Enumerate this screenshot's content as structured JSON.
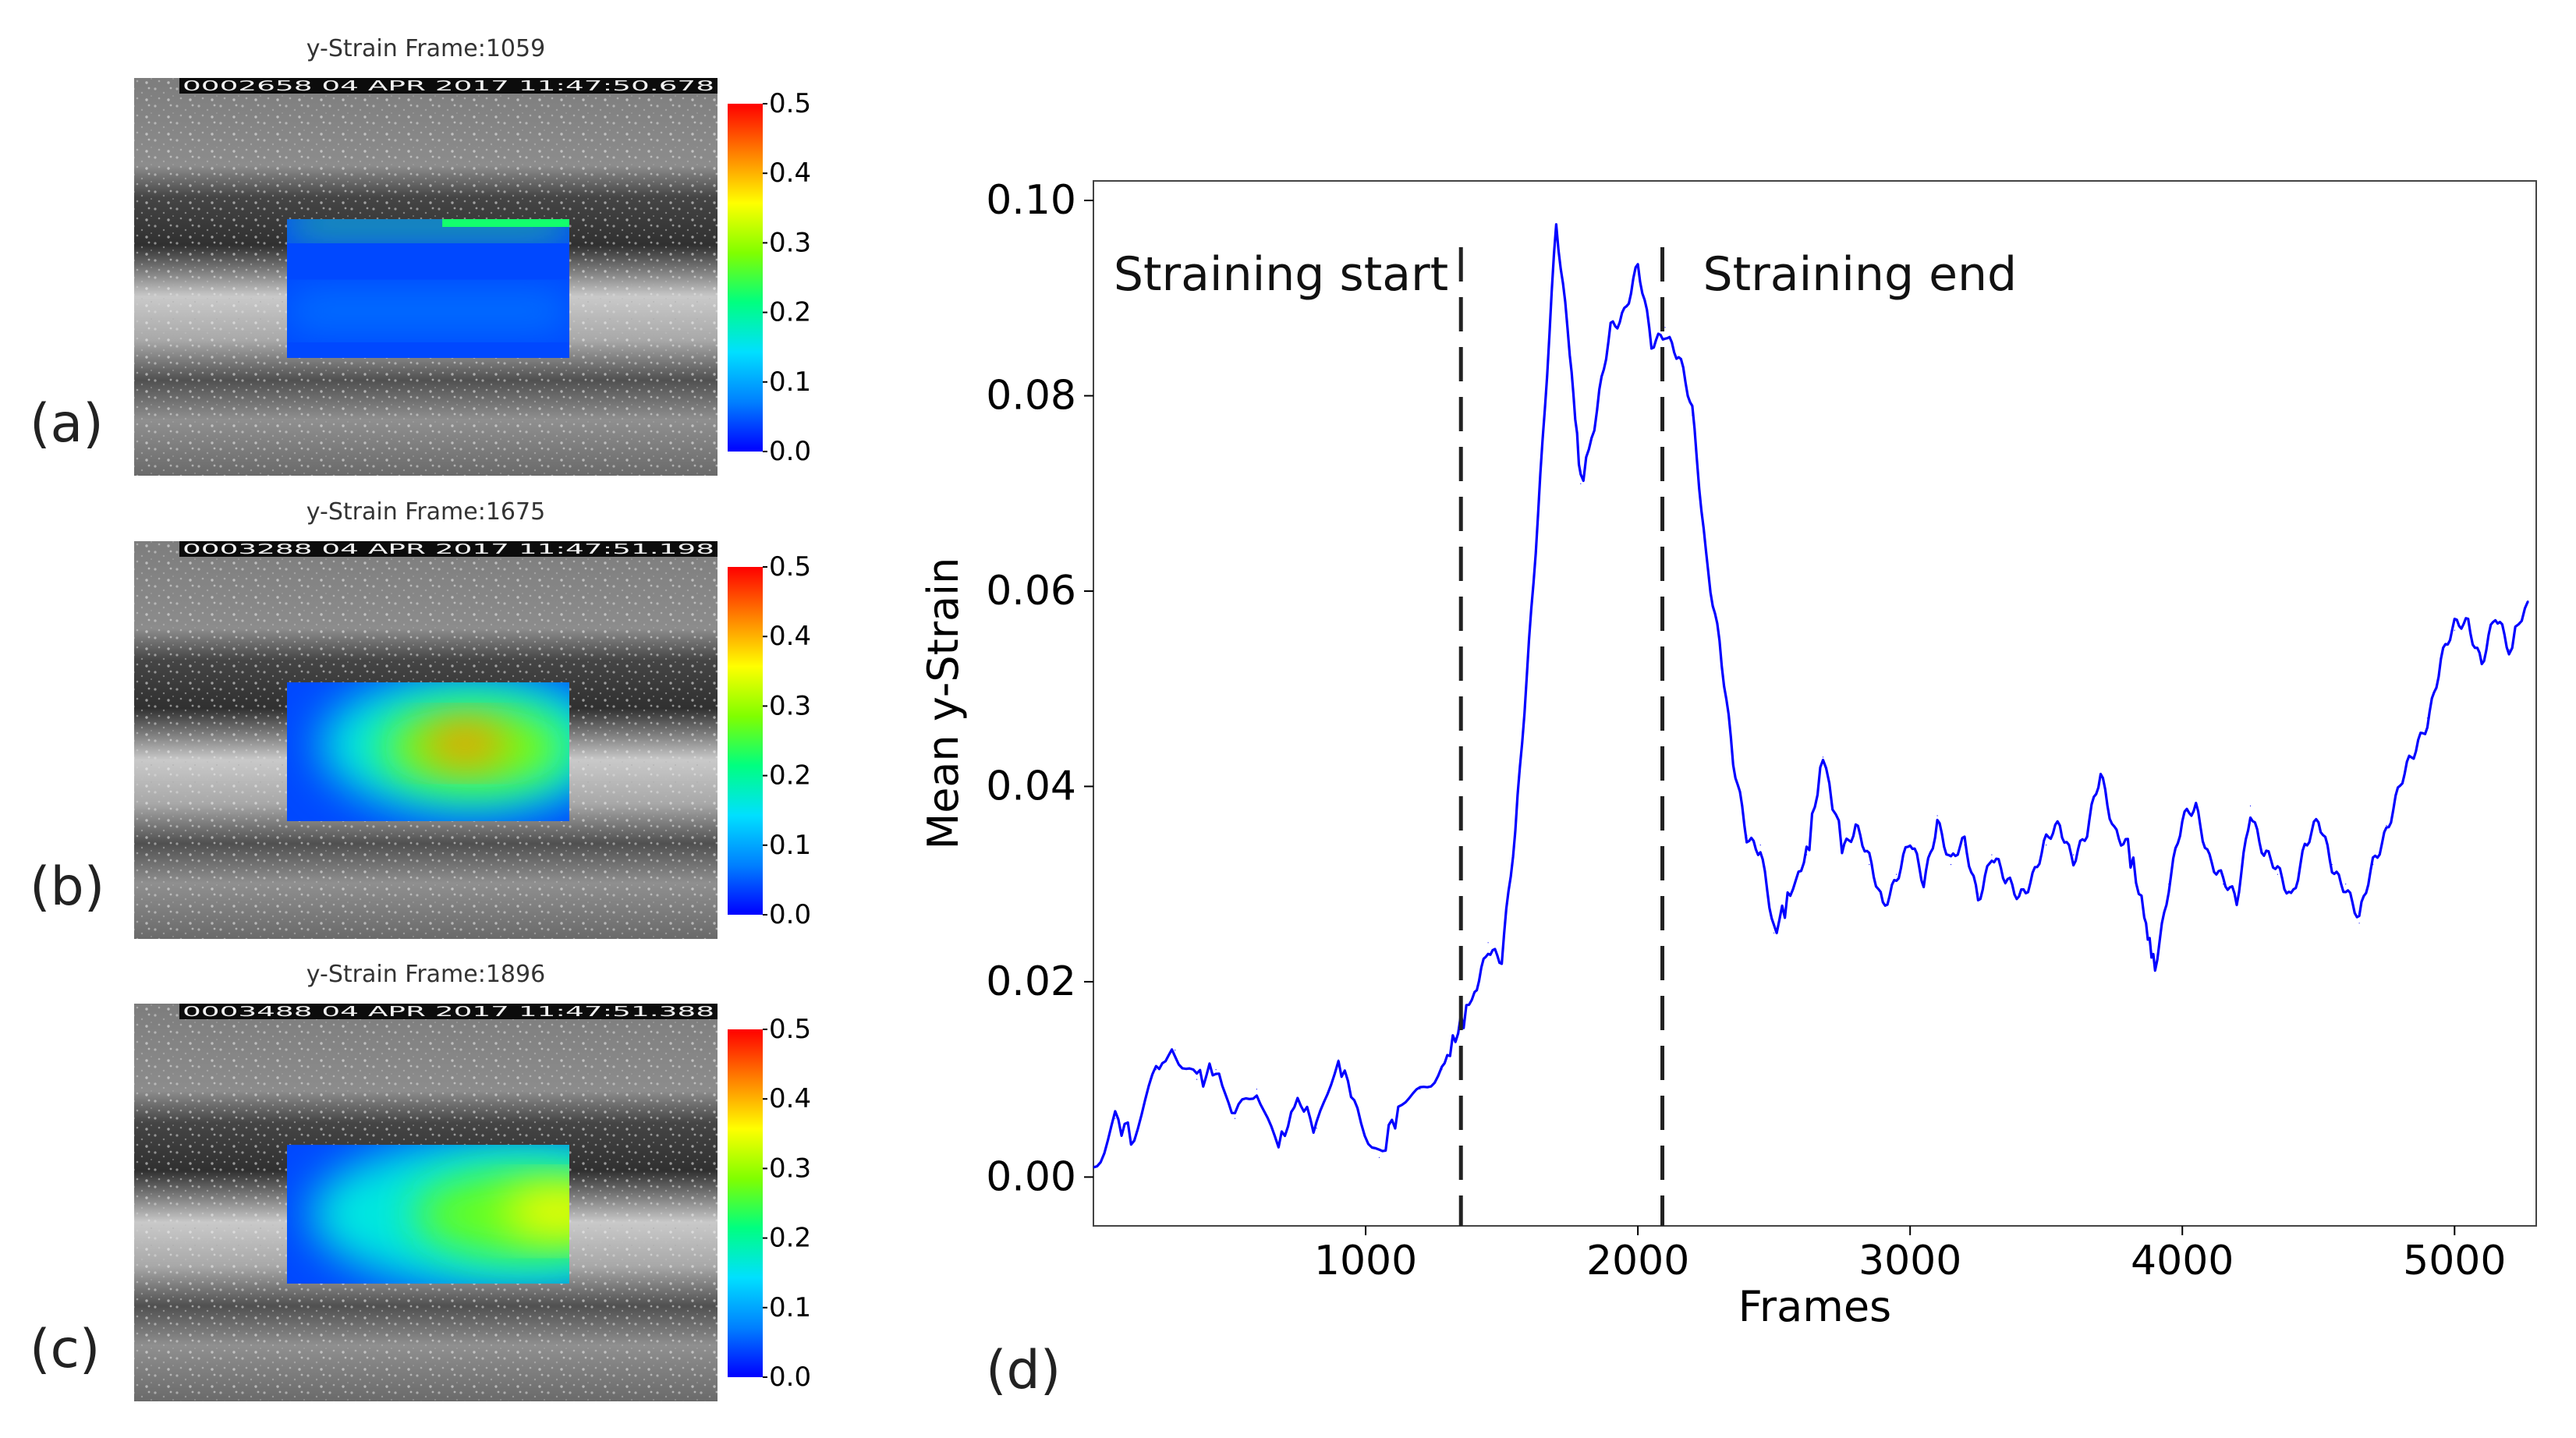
{
  "panels": [
    {
      "id": "a",
      "label": "(a)",
      "title": "y-Strain Frame:1059",
      "timestamp": "0002658 04 APR 2017 11:47:50.678",
      "hotspot": "top-edge",
      "peak_strain": 0.25
    },
    {
      "id": "b",
      "label": "(b)",
      "title": "y-Strain Frame:1675",
      "timestamp": "0003288 04 APR 2017 11:47:51.198",
      "hotspot": "center-right",
      "peak_strain": 0.42
    },
    {
      "id": "c",
      "label": "(c)",
      "title": "y-Strain Frame:1896",
      "timestamp": "0003488 04 APR 2017 11:47:51.388",
      "hotspot": "right-edge",
      "peak_strain": 0.36
    }
  ],
  "colorbar": {
    "ticks": [
      "0.0",
      "0.1",
      "0.2",
      "0.3",
      "0.4",
      "0.5"
    ],
    "colors": [
      "#0000ff",
      "#0080ff",
      "#00e0ff",
      "#00ff80",
      "#80ff00",
      "#ffff00",
      "#ff8000",
      "#ff0000"
    ]
  },
  "chart_data": {
    "type": "line",
    "panel_label": "(d)",
    "xlabel": "Frames",
    "ylabel": "Mean y-Strain",
    "xlim": [
      0,
      5300
    ],
    "ylim": [
      -0.005,
      0.102
    ],
    "xticks": [
      1000,
      2000,
      3000,
      4000,
      5000
    ],
    "yticks": [
      0.0,
      0.02,
      0.04,
      0.06,
      0.08,
      0.1
    ],
    "ytick_labels": [
      "0.00",
      "0.02",
      "0.04",
      "0.06",
      "0.08",
      "0.10"
    ],
    "color": "#0000ff",
    "series": [
      {
        "name": "Mean y-Strain",
        "x": [
          0,
          80,
          150,
          230,
          300,
          380,
          450,
          520,
          600,
          680,
          750,
          820,
          900,
          970,
          1050,
          1120,
          1200,
          1280,
          1340,
          1400,
          1450,
          1500,
          1550,
          1600,
          1650,
          1700,
          1750,
          1790,
          1850,
          1900,
          1950,
          2000,
          2050,
          2100,
          2150,
          2200,
          2250,
          2300,
          2350,
          2400,
          2450,
          2500,
          2560,
          2620,
          2680,
          2750,
          2800,
          2850,
          2900,
          2950,
          3000,
          3050,
          3100,
          3150,
          3200,
          3250,
          3300,
          3350,
          3400,
          3450,
          3500,
          3550,
          3600,
          3650,
          3700,
          3750,
          3800,
          3860,
          3900,
          3950,
          4000,
          4050,
          4100,
          4150,
          4200,
          4250,
          4300,
          4350,
          4400,
          4450,
          4500,
          4550,
          4600,
          4650,
          4700,
          4750,
          4800,
          4850,
          4900,
          4950,
          5000,
          5050,
          5100,
          5150,
          5200,
          5270
        ],
        "y": [
          0.001,
          0.006,
          0.004,
          0.011,
          0.013,
          0.01,
          0.011,
          0.006,
          0.009,
          0.003,
          0.008,
          0.005,
          0.012,
          0.007,
          0.002,
          0.007,
          0.009,
          0.011,
          0.015,
          0.019,
          0.024,
          0.022,
          0.035,
          0.055,
          0.075,
          0.097,
          0.085,
          0.071,
          0.078,
          0.087,
          0.089,
          0.093,
          0.085,
          0.087,
          0.084,
          0.078,
          0.064,
          0.055,
          0.042,
          0.035,
          0.034,
          0.025,
          0.029,
          0.033,
          0.043,
          0.034,
          0.036,
          0.032,
          0.028,
          0.031,
          0.034,
          0.03,
          0.037,
          0.032,
          0.034,
          0.029,
          0.033,
          0.03,
          0.029,
          0.031,
          0.034,
          0.036,
          0.033,
          0.035,
          0.041,
          0.036,
          0.034,
          0.027,
          0.022,
          0.03,
          0.036,
          0.038,
          0.033,
          0.03,
          0.028,
          0.038,
          0.033,
          0.031,
          0.029,
          0.034,
          0.036,
          0.032,
          0.03,
          0.026,
          0.032,
          0.036,
          0.04,
          0.043,
          0.047,
          0.053,
          0.056,
          0.057,
          0.053,
          0.057,
          0.054,
          0.059
        ]
      }
    ],
    "vlines": [
      {
        "x": 1350,
        "label": "Straining start",
        "label_side": "left"
      },
      {
        "x": 2090,
        "label": "Straining end",
        "label_side": "right"
      }
    ]
  }
}
